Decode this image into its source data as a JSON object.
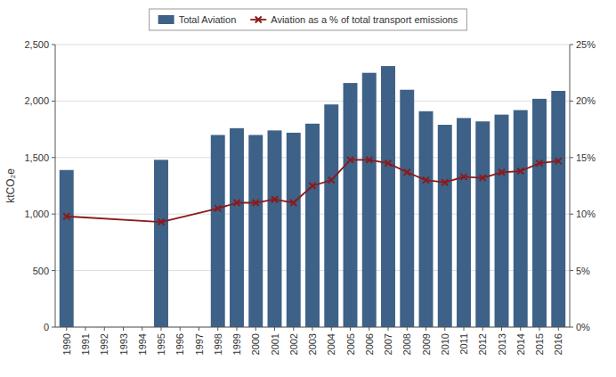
{
  "chart_data": {
    "type": "bar",
    "x": [
      1990,
      1995,
      1998,
      1999,
      2000,
      2001,
      2002,
      2003,
      2004,
      2005,
      2006,
      2007,
      2008,
      2009,
      2010,
      2011,
      2012,
      2013,
      2014,
      2015,
      2016
    ],
    "xlim": [
      1989.4,
      2016.6
    ],
    "xticks": [
      1990,
      1991,
      1992,
      1993,
      1994,
      1995,
      1996,
      1997,
      1998,
      1999,
      2000,
      2001,
      2002,
      2003,
      2004,
      2005,
      2006,
      2007,
      2008,
      2009,
      2010,
      2011,
      2012,
      2013,
      2014,
      2015,
      2016
    ],
    "y_label": "ktCO₂e",
    "ylim": [
      0,
      2500
    ],
    "yticks": [
      0,
      500,
      {
        "value": 1000,
        "label": "1,000"
      },
      {
        "value": 1500,
        "label": "1,500"
      },
      {
        "value": 2000,
        "label": "2,000"
      },
      {
        "value": 2500,
        "label": "2,500"
      }
    ],
    "y2lim": [
      0,
      25
    ],
    "y2ticks": [
      {
        "value": 0,
        "label": "0%"
      },
      {
        "value": 5,
        "label": "5%"
      },
      {
        "value": 10,
        "label": "10%"
      },
      {
        "value": 15,
        "label": "15%"
      },
      {
        "value": 20,
        "label": "20%"
      },
      {
        "value": 25,
        "label": "25%"
      }
    ],
    "grid": true,
    "legend": "top",
    "series": [
      {
        "name": "Total Aviation",
        "type": "bar",
        "color": "#3d6187",
        "values": [
          1390,
          1480,
          1700,
          1760,
          1700,
          1740,
          1720,
          1800,
          1970,
          2160,
          2250,
          2310,
          2100,
          1910,
          1790,
          1850,
          1820,
          1880,
          1920,
          2020,
          2090
        ]
      },
      {
        "name": "Aviation as a % of total transport emissions",
        "type": "line",
        "axis": "y2",
        "color": "#8b1a1a",
        "marker": "x",
        "values": [
          9.8,
          9.3,
          10.5,
          11.0,
          11.0,
          11.3,
          11.0,
          12.5,
          13.0,
          14.8,
          14.8,
          14.5,
          13.7,
          13.0,
          12.8,
          13.3,
          13.2,
          13.7,
          13.8,
          14.5,
          14.7
        ]
      }
    ]
  }
}
